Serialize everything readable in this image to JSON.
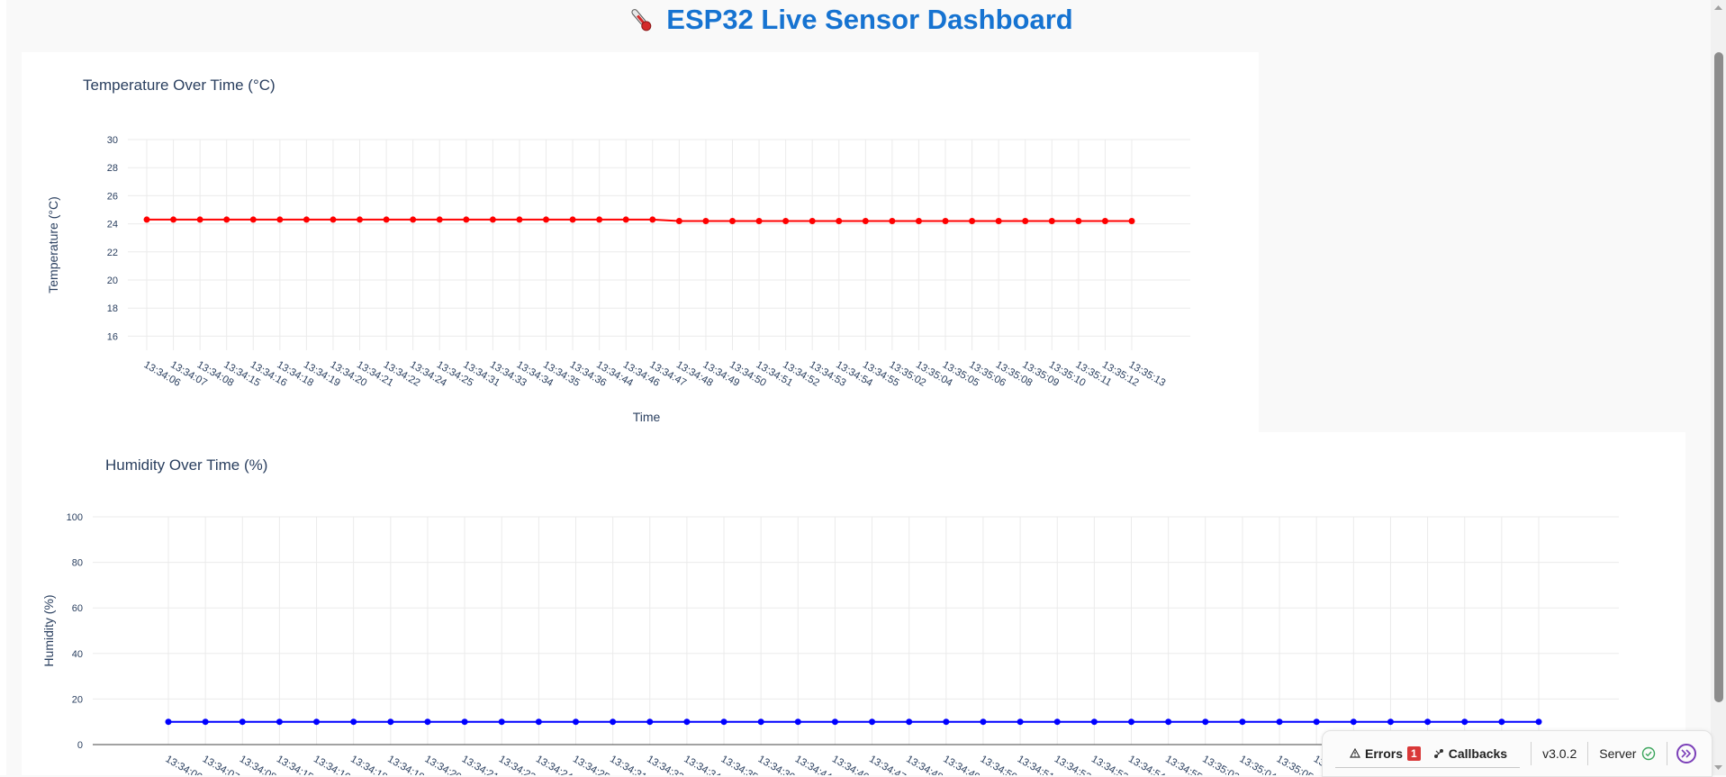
{
  "header": {
    "icon": "thermometer-icon",
    "title": "ESP32 Live Sensor Dashboard"
  },
  "timestamps": [
    "13:34:06",
    "13:34:07",
    "13:34:08",
    "13:34:15",
    "13:34:16",
    "13:34:18",
    "13:34:19",
    "13:34:20",
    "13:34:21",
    "13:34:22",
    "13:34:24",
    "13:34:25",
    "13:34:31",
    "13:34:33",
    "13:34:34",
    "13:34:35",
    "13:34:36",
    "13:34:44",
    "13:34:46",
    "13:34:47",
    "13:34:48",
    "13:34:49",
    "13:34:50",
    "13:34:51",
    "13:34:52",
    "13:34:53",
    "13:34:54",
    "13:34:55",
    "13:35:02",
    "13:35:04",
    "13:35:05",
    "13:35:06",
    "13:35:08",
    "13:35:09",
    "13:35:10",
    "13:35:11",
    "13:35:12",
    "13:35:13"
  ],
  "chart_data": [
    {
      "type": "line",
      "title": "Temperature Over Time (°C)",
      "xlabel": "Time",
      "ylabel": "Temperature (°C)",
      "ylim": [
        15,
        30
      ],
      "yticks": [
        16,
        18,
        20,
        22,
        24,
        26,
        28,
        30
      ],
      "grid": true,
      "color": "#ff0000",
      "series": [
        {
          "values": [
            24.3,
            24.3,
            24.3,
            24.3,
            24.3,
            24.3,
            24.3,
            24.3,
            24.3,
            24.3,
            24.3,
            24.3,
            24.3,
            24.3,
            24.3,
            24.3,
            24.3,
            24.3,
            24.3,
            24.3,
            24.2,
            24.2,
            24.2,
            24.2,
            24.2,
            24.2,
            24.2,
            24.2,
            24.2,
            24.2,
            24.2,
            24.2,
            24.2,
            24.2,
            24.2,
            24.2,
            24.2,
            24.2
          ]
        }
      ]
    },
    {
      "type": "line",
      "title": "Humidity Over Time (%)",
      "xlabel": "",
      "ylabel": "Humidity (%)",
      "ylim": [
        0,
        100
      ],
      "yticks": [
        0,
        20,
        40,
        60,
        80,
        100
      ],
      "grid": true,
      "color": "#0000ff",
      "series": [
        {
          "values": [
            10,
            10,
            10,
            10,
            10,
            10,
            10,
            10,
            10,
            10,
            10,
            10,
            10,
            10,
            10,
            10,
            10,
            10,
            10,
            10,
            10,
            10,
            10,
            10,
            10,
            10,
            10,
            10,
            10,
            10,
            10,
            10,
            10,
            10,
            10,
            10,
            10,
            10
          ]
        }
      ]
    }
  ],
  "devtools": {
    "errors_label": "Errors",
    "errors_count": "1",
    "callbacks_label": "Callbacks",
    "version": "v3.0.2",
    "server_label": "Server",
    "server_status_icon": "check-circle-icon",
    "toggle_icon": "double-chevron-right-icon",
    "accent_color": "#7b3fb8",
    "error_color": "#d93838",
    "ok_color": "#3ba55c"
  }
}
